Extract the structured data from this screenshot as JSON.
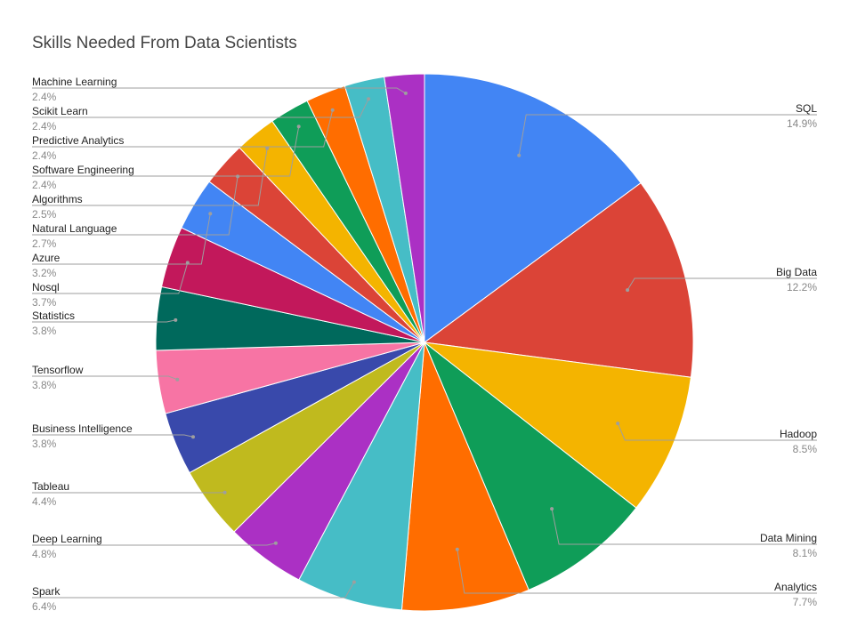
{
  "chart_data": {
    "type": "pie",
    "title": "Skills Needed From Data Scientists",
    "slices": [
      {
        "label": "SQL",
        "value": 14.9,
        "display": "14.9%",
        "color": "#4285F4"
      },
      {
        "label": "Big Data",
        "value": 12.2,
        "display": "12.2%",
        "color": "#DB4437"
      },
      {
        "label": "Hadoop",
        "value": 8.5,
        "display": "8.5%",
        "color": "#F4B400"
      },
      {
        "label": "Data Mining",
        "value": 8.1,
        "display": "8.1%",
        "color": "#0F9D58"
      },
      {
        "label": "Analytics",
        "value": 7.7,
        "display": "7.7%",
        "color": "#FF6D00"
      },
      {
        "label": "Spark",
        "value": 6.4,
        "display": "6.4%",
        "color": "#46BDC6"
      },
      {
        "label": "Deep Learning",
        "value": 4.8,
        "display": "4.8%",
        "color": "#AB30C4"
      },
      {
        "label": "Tableau",
        "value": 4.4,
        "display": "4.4%",
        "color": "#C0BA1E"
      },
      {
        "label": "Business Intelligence",
        "value": 3.8,
        "display": "3.8%",
        "color": "#3949AB"
      },
      {
        "label": "Tensorflow",
        "value": 3.8,
        "display": "3.8%",
        "color": "#F774A4"
      },
      {
        "label": "Statistics",
        "value": 3.8,
        "display": "3.8%",
        "color": "#00695C"
      },
      {
        "label": "Nosql",
        "value": 3.7,
        "display": "3.7%",
        "color": "#C2185B"
      },
      {
        "label": "Azure",
        "value": 3.2,
        "display": "3.2%",
        "color": "#4285F4"
      },
      {
        "label": "Natural Language",
        "value": 2.7,
        "display": "2.7%",
        "color": "#DB4437"
      },
      {
        "label": "Algorithms",
        "value": 2.5,
        "display": "2.5%",
        "color": "#F4B400"
      },
      {
        "label": "Software Engineering",
        "value": 2.4,
        "display": "2.4%",
        "color": "#0F9D58"
      },
      {
        "label": "Predictive Analytics",
        "value": 2.4,
        "display": "2.4%",
        "color": "#FF6D00"
      },
      {
        "label": "Scikit Learn",
        "value": 2.4,
        "display": "2.4%",
        "color": "#46BDC6"
      },
      {
        "label": "Machine Learning",
        "value": 2.4,
        "display": "2.4%",
        "color": "#AB30C4"
      }
    ],
    "legend": "none",
    "label_style": "callout"
  }
}
